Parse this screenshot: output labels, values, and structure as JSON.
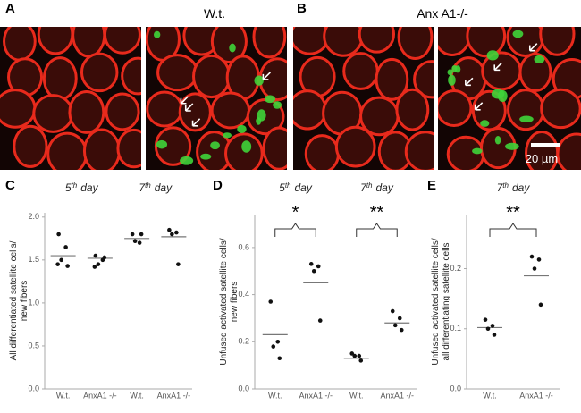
{
  "figure": {
    "panel_labels": [
      "A",
      "B",
      "C",
      "D",
      "E"
    ],
    "image_titles": [
      "W.t.",
      "Anx A1-/-"
    ],
    "scale_bar": "20 µm"
  },
  "chart_data": [
    {
      "type": "dot",
      "categories": [
        "W.t.",
        "AnxA1 -/-",
        "W.t.",
        "AnxA1 -/-"
      ],
      "headers": [
        {
          "num": "5",
          "sup": "th",
          "text": "day"
        },
        {
          "num": "7",
          "sup": "th",
          "text": "day"
        }
      ],
      "ylabel": [
        "All differentiated satellite cells/",
        "new fibers"
      ],
      "points": [
        [
          1.8,
          1.65,
          1.5,
          1.43,
          1.45
        ],
        [
          1.55,
          1.5,
          1.45,
          1.53,
          1.42
        ],
        [
          1.8,
          1.7,
          1.72,
          1.8
        ],
        [
          1.85,
          1.82,
          1.8,
          1.45
        ]
      ],
      "means": [
        1.55,
        1.52,
        1.75,
        1.77
      ],
      "ylim": [
        0,
        2.05
      ],
      "yticks": [
        {
          "value": 0,
          "label": "0.0"
        },
        {
          "value": 0.5,
          "label": "0.5"
        },
        {
          "value": 1,
          "label": "1.0"
        },
        {
          "value": 1.5,
          "label": "1.5"
        },
        {
          "value": 2,
          "label": "2.0"
        }
      ],
      "color": "#111111",
      "grid": false
    },
    {
      "type": "dot",
      "categories": [
        "W.t.",
        "AnxA1 -/-",
        "W.t.",
        "AnxA1 -/-"
      ],
      "headers": [
        {
          "num": "5",
          "sup": "th",
          "text": "day"
        },
        {
          "num": "7",
          "sup": "th",
          "text": "day"
        }
      ],
      "annotations": [
        "*",
        "**"
      ],
      "ylabel": [
        "Unfused activated satellite cells/",
        "new fibers"
      ],
      "points": [
        [
          0.37,
          0.2,
          0.18,
          0.13
        ],
        [
          0.53,
          0.52,
          0.5,
          0.29
        ],
        [
          0.15,
          0.14,
          0.14,
          0.12
        ],
        [
          0.33,
          0.3,
          0.27,
          0.25
        ]
      ],
      "means": [
        0.23,
        0.45,
        0.13,
        0.28
      ],
      "ylim": [
        0,
        0.74
      ],
      "yticks": [
        {
          "value": 0,
          "label": "0.0"
        },
        {
          "value": 0.2,
          "label": "0.2"
        },
        {
          "value": 0.4,
          "label": "0.4"
        },
        {
          "value": 0.6,
          "label": "0.6"
        }
      ],
      "color": "#111111",
      "grid": false
    },
    {
      "type": "dot",
      "categories": [
        "W.t.",
        "AnxA1 -/-"
      ],
      "headers": [
        {
          "num": "7",
          "sup": "th",
          "text": "day"
        }
      ],
      "annotations": [
        "**"
      ],
      "ylabel": [
        "Unfused activated satellite cells/",
        "all differentiating satellite cells"
      ],
      "points": [
        [
          0.115,
          0.105,
          0.1,
          0.09
        ],
        [
          0.22,
          0.215,
          0.2,
          0.14
        ]
      ],
      "means": [
        0.102,
        0.188
      ],
      "ylim": [
        0,
        0.29
      ],
      "yticks": [
        {
          "value": 0,
          "label": "0.0"
        },
        {
          "value": 0.1,
          "label": "0.1"
        },
        {
          "value": 0.2,
          "label": "0.2"
        }
      ],
      "color": "#111111",
      "grid": false
    }
  ]
}
